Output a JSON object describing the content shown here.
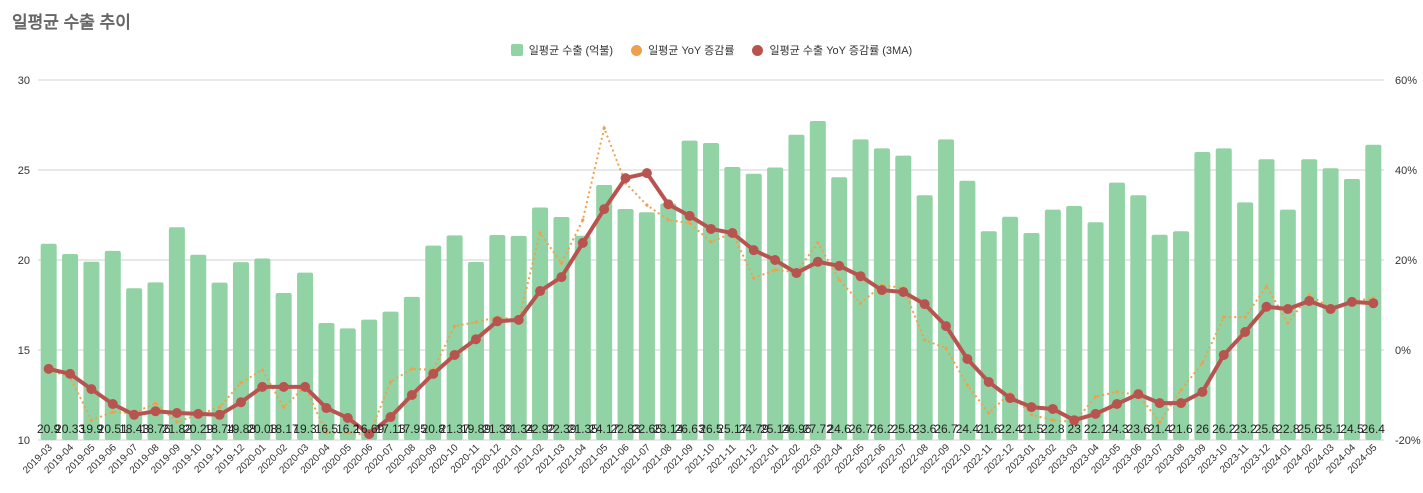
{
  "title": "일평균 수출 추이",
  "chart_data": {
    "type": "bar+line",
    "title": "일평균 수출 추이",
    "categories": [
      "2019-03",
      "2019-04",
      "2019-05",
      "2019-06",
      "2019-07",
      "2019-08",
      "2019-09",
      "2019-10",
      "2019-11",
      "2019-12",
      "2020-01",
      "2020-02",
      "2020-03",
      "2020-04",
      "2020-05",
      "2020-06",
      "2020-07",
      "2020-08",
      "2020-09",
      "2020-10",
      "2020-11",
      "2020-12",
      "2021-01",
      "2021-02",
      "2021-03",
      "2021-04",
      "2021-05",
      "2021-06",
      "2021-07",
      "2021-08",
      "2021-09",
      "2021-10",
      "2021-11",
      "2021-12",
      "2022-01",
      "2022-02",
      "2022-03",
      "2022-04",
      "2022-05",
      "2022-06",
      "2022-07",
      "2022-08",
      "2022-09",
      "2022-10",
      "2022-11",
      "2022-12",
      "2023-01",
      "2023-02",
      "2023-03",
      "2023-04",
      "2023-05",
      "2023-06",
      "2023-07",
      "2023-08",
      "2023-09",
      "2023-10",
      "2023-11",
      "2023-12",
      "2024-01",
      "2024-02",
      "2024-03",
      "2024-04",
      "2024-05"
    ],
    "series": [
      {
        "name": "일평균 수출 (억불)",
        "type": "bar",
        "axis": "left",
        "color": "#92d3a5",
        "values": [
          20.9,
          20.33,
          19.9,
          20.51,
          18.43,
          18.76,
          21.82,
          20.29,
          18.74,
          19.88,
          20.08,
          18.17,
          19.3,
          16.5,
          16.2,
          16.69,
          17.13,
          17.95,
          20.8,
          21.37,
          19.89,
          21.39,
          21.34,
          22.92,
          22.39,
          21.35,
          24.17,
          22.83,
          22.65,
          23.14,
          26.63,
          26.5,
          25.17,
          24.79,
          25.14,
          26.96,
          27.72,
          24.6,
          26.7,
          26.2,
          25.8,
          23.6,
          26.7,
          24.4,
          21.6,
          22.4,
          21.5,
          22.8,
          23,
          22.1,
          24.3,
          23.6,
          21.4,
          21.6,
          26,
          26.2,
          23.2,
          25.6,
          22.8,
          25.6,
          25.1,
          24.5,
          26.4
        ]
      },
      {
        "name": "일평균 YoY 증감률",
        "type": "line-dotted",
        "axis": "right",
        "color": "#f0a04b",
        "values": [
          -4.4,
          -6,
          -15.6,
          -13.8,
          -14,
          -11.8,
          -16,
          -14.4,
          -12.7,
          -7.3,
          -4.4,
          -12.7,
          -8.2,
          -18.4,
          -18.4,
          -18.9,
          -7.1,
          -4.2,
          -4.4,
          5.3,
          6.2,
          7.3,
          6.7,
          26,
          19.3,
          28.9,
          49.3,
          37.1,
          32.2,
          28.9,
          28.2,
          24,
          26,
          16,
          17.8,
          17.3,
          23.8,
          15.6,
          10.4,
          14.4,
          13.8,
          2.2,
          0.4,
          -7.8,
          -14,
          -9.6,
          -14.4,
          -15.6,
          -16,
          -10.4,
          -9.3,
          -10,
          -16,
          -8.9,
          -2.9,
          7.3,
          7.3,
          14.2,
          6,
          12.2,
          9.3,
          10.7,
          11.6
        ]
      },
      {
        "name": "일평균 수출 YoY 증감률 (3MA)",
        "type": "line",
        "axis": "right",
        "color": "#b85450",
        "values": [
          -4.2,
          -5.3,
          -8.7,
          -12,
          -14.4,
          -13.6,
          -14,
          -14.2,
          -14.4,
          -11.6,
          -8.2,
          -8.2,
          -8.2,
          -12.9,
          -15.1,
          -18.7,
          -14.9,
          -10,
          -5.3,
          -1.1,
          2.4,
          6.4,
          6.7,
          13.1,
          16.2,
          23.8,
          31.3,
          38.2,
          39.3,
          32.4,
          29.8,
          26.9,
          26,
          22.2,
          20,
          17.1,
          19.6,
          18.7,
          16.4,
          13.3,
          12.9,
          10.2,
          5.3,
          -2,
          -7.1,
          -10.7,
          -12.7,
          -13.1,
          -15.6,
          -14.2,
          -12,
          -9.8,
          -11.8,
          -11.8,
          -9.3,
          -1.1,
          4,
          9.6,
          9.1,
          10.9,
          9.1,
          10.7,
          10.4
        ]
      }
    ],
    "y_left": {
      "min": 10,
      "max": 30,
      "ticks": [
        "10",
        "15",
        "20",
        "25",
        "30"
      ]
    },
    "y_right": {
      "min": -20,
      "max": 60,
      "ticks": [
        "-20%",
        "0%",
        "20%",
        "40%",
        "60%"
      ]
    },
    "grid": true,
    "legend_position": "top-center"
  }
}
